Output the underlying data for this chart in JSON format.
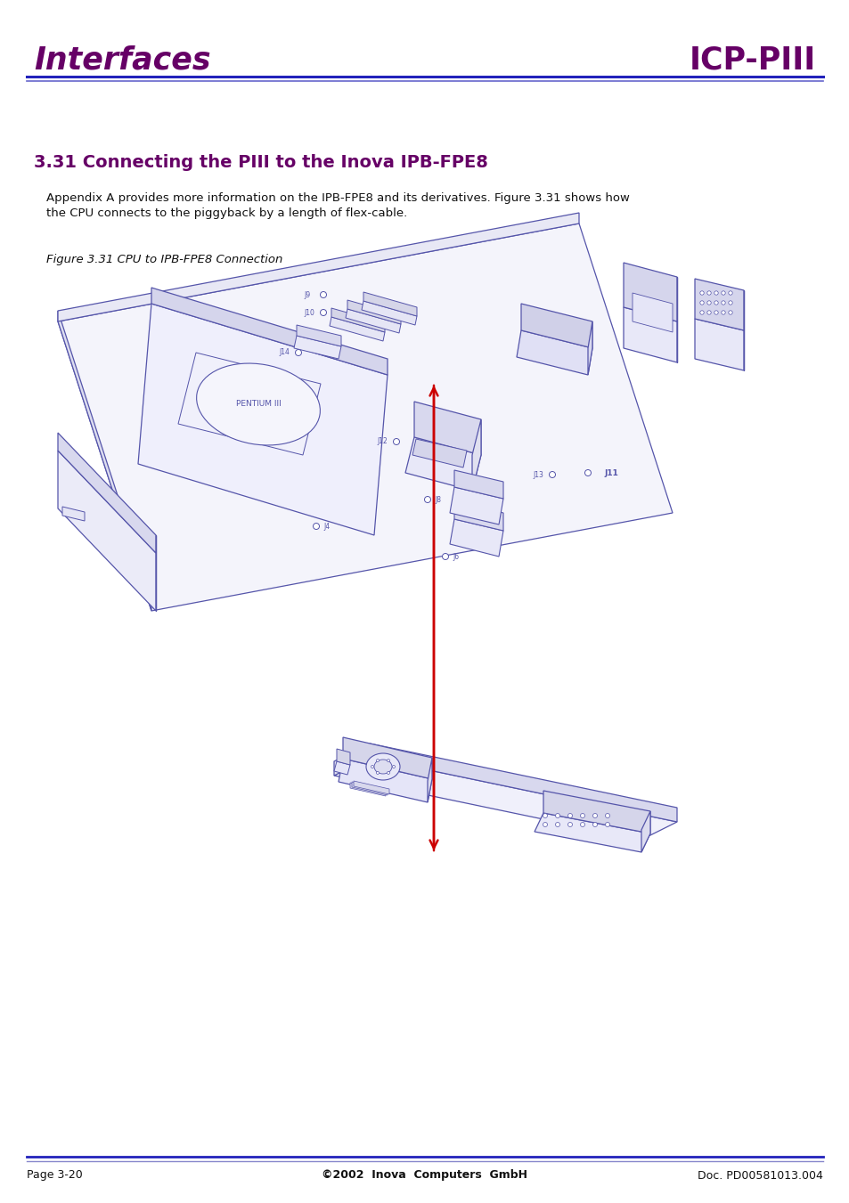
{
  "bg_color": "#ffffff",
  "header_left": "Interfaces",
  "header_right": "ICP-PIII",
  "header_color": "#660066",
  "header_line_color1": "#2222bb",
  "header_line_color2": "#6666cc",
  "section_title": "3.31 Connecting the PIII to the Inova IPB-FPE8",
  "section_color": "#660066",
  "body_line1": "Appendix A provides more information on the IPB-FPE8 and its derivatives. Figure 3.31 shows how",
  "body_line2": "the CPU connects to the piggyback by a length of flex-cable.",
  "figure_caption": "Figure 3.31 CPU to IPB-FPE8 Connection",
  "footer_left": "Page 3-20",
  "footer_center": "©2002  Inova  Computers  GmbH",
  "footer_right": "Doc. PD00581013.004",
  "footer_line_color": "#2222bb",
  "dc": "#5555aa",
  "arrow_color": "#cc0000"
}
